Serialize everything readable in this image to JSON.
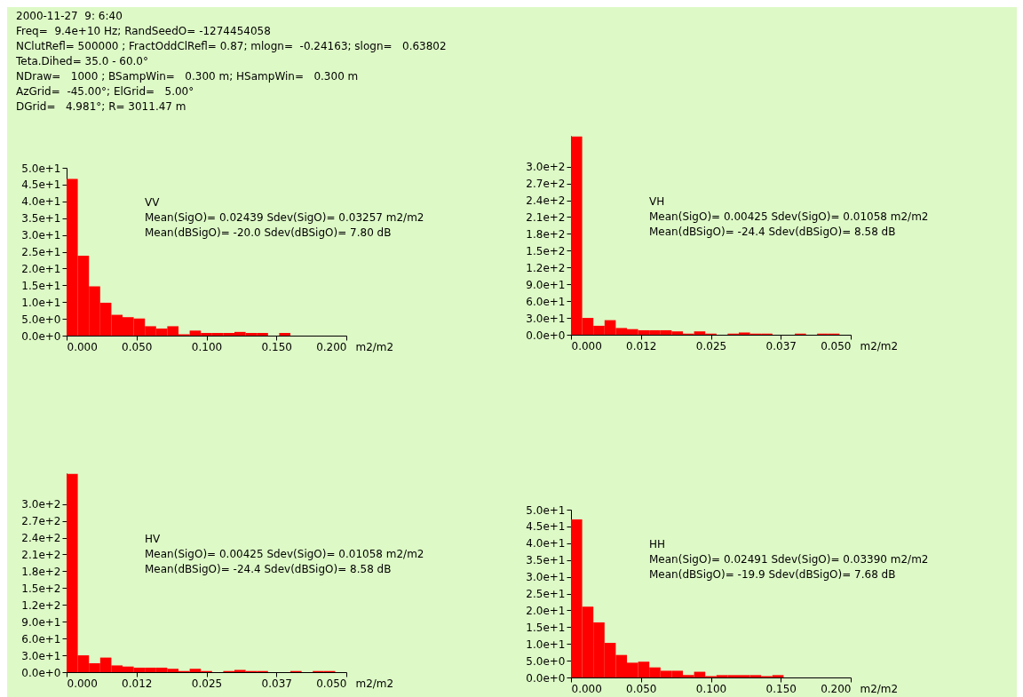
{
  "chart_data": [
    {
      "type": "other",
      "annotations": [
        "2000-11-27  9: 6:40",
        "Freq=  9.4e+10 Hz; RandSeedO= -1274454058",
        "NClutRefl= 500000 ; FractOddClRefl= 0.87; mlogn=  -0.24163; slogn=   0.63802",
        "Teta.Dihed= 35.0 - 60.0°",
        "NDraw=   1000 ; BSampWin=   0.300 m; HSampWin=   0.300 m",
        "AzGrid=  -45.00°; ElGrid=   5.00°",
        "DGrid=   4.981°; R= 3011.47 m"
      ]
    },
    {
      "type": "histogram",
      "title": "VV",
      "annotations": [
        "Mean(SigO)= 0.02439  Sdev(SigO)= 0.03257 m2/m2",
        "Mean(dBSigO)= -20.0  Sdev(dBSigO)=   7.80 dB"
      ],
      "xlabel": "m2/m2",
      "color": "#ff0000",
      "bins": [
        0,
        0.008,
        0.016,
        0.024,
        0.032,
        0.04,
        0.048,
        0.056,
        0.064,
        0.072,
        0.08,
        0.088,
        0.096,
        0.104,
        0.112,
        0.12,
        0.128,
        0.136,
        0.144,
        0.152,
        0.16,
        0.168,
        0.176,
        0.184,
        0.192,
        0.2
      ],
      "values": [
        46.7,
        23.8,
        14.7,
        9.8,
        6.2,
        5.5,
        5.1,
        2.8,
        2.1,
        2.8,
        0.4,
        1.5,
        0.8,
        0.8,
        0.8,
        1.1,
        0.8,
        0.8,
        0,
        0.8,
        0,
        0,
        0,
        0,
        0
      ],
      "xlim": [
        0,
        0.2
      ],
      "xticks": [
        {
          "value": 0,
          "label": "0.000"
        },
        {
          "value": 0.05,
          "label": "0.050"
        },
        {
          "value": 0.1,
          "label": "0.100"
        },
        {
          "value": 0.15,
          "label": "0.150"
        },
        {
          "value": 0.2,
          "label": "0.200"
        }
      ],
      "ylim": [
        0,
        50
      ],
      "yticks": [
        {
          "value": 0,
          "label": "0.0e+0"
        },
        {
          "value": 5,
          "label": "5.0e+0"
        },
        {
          "value": 10,
          "label": "1.0e+1"
        },
        {
          "value": 15,
          "label": "1.5e+1"
        },
        {
          "value": 20,
          "label": "2.0e+1"
        },
        {
          "value": 25,
          "label": "2.5e+1"
        },
        {
          "value": 30,
          "label": "3.0e+1"
        },
        {
          "value": 35,
          "label": "3.5e+1"
        },
        {
          "value": 40,
          "label": "4.0e+1"
        },
        {
          "value": 45,
          "label": "4.5e+1"
        },
        {
          "value": 50,
          "label": "5.0e+1"
        }
      ]
    },
    {
      "type": "histogram",
      "title": "VH",
      "annotations": [
        "Mean(SigO)= 0.00425  Sdev(SigO)= 0.01058 m2/m2",
        "Mean(dBSigO)= -24.4  Sdev(dBSigO)=   8.58 dB"
      ],
      "xlabel": "m2/m2",
      "color": "#ff0000",
      "bins": [
        0,
        0.002,
        0.004,
        0.006,
        0.008,
        0.01,
        0.012,
        0.014,
        0.016,
        0.018,
        0.02,
        0.022,
        0.024,
        0.026,
        0.028,
        0.03,
        0.032,
        0.034,
        0.036,
        0.038,
        0.04,
        0.042,
        0.044,
        0.046,
        0.048,
        0.05
      ],
      "values": [
        354,
        30,
        16,
        26,
        12,
        10,
        8,
        8,
        8,
        6,
        2,
        6,
        2,
        0,
        2,
        4,
        2,
        2,
        0,
        0,
        2,
        0,
        2,
        2,
        0
      ],
      "xlim": [
        0,
        0.05
      ],
      "xticks": [
        {
          "value": 0,
          "label": "0.000"
        },
        {
          "value": 0.0125,
          "label": "0.012"
        },
        {
          "value": 0.025,
          "label": "0.025"
        },
        {
          "value": 0.0375,
          "label": "0.037"
        },
        {
          "value": 0.05,
          "label": "0.050"
        }
      ],
      "ylim": [
        0,
        355
      ],
      "yticks": [
        {
          "value": 0,
          "label": "0.0e+0"
        },
        {
          "value": 30,
          "label": "3.0e+1"
        },
        {
          "value": 60,
          "label": "6.0e+1"
        },
        {
          "value": 90,
          "label": "9.0e+1"
        },
        {
          "value": 120,
          "label": "1.2e+2"
        },
        {
          "value": 150,
          "label": "1.5e+2"
        },
        {
          "value": 180,
          "label": "1.8e+2"
        },
        {
          "value": 210,
          "label": "2.1e+2"
        },
        {
          "value": 240,
          "label": "2.4e+2"
        },
        {
          "value": 270,
          "label": "2.7e+2"
        },
        {
          "value": 300,
          "label": "3.0e+2"
        }
      ]
    },
    {
      "type": "histogram",
      "title": "HV",
      "annotations": [
        "Mean(SigO)= 0.00425  Sdev(SigO)= 0.01058 m2/m2",
        "Mean(dBSigO)= -24.4  Sdev(dBSigO)=   8.58 dB"
      ],
      "xlabel": "m2/m2",
      "color": "#ff0000",
      "bins": [
        0,
        0.002,
        0.004,
        0.006,
        0.008,
        0.01,
        0.012,
        0.014,
        0.016,
        0.018,
        0.02,
        0.022,
        0.024,
        0.026,
        0.028,
        0.03,
        0.032,
        0.034,
        0.036,
        0.038,
        0.04,
        0.042,
        0.044,
        0.046,
        0.048,
        0.05
      ],
      "values": [
        354,
        30,
        16,
        26,
        12,
        10,
        8,
        8,
        8,
        6,
        2,
        6,
        2,
        0,
        2,
        4,
        2,
        2,
        0,
        0,
        2,
        0,
        2,
        2,
        0
      ],
      "xlim": [
        0,
        0.05
      ],
      "xticks": [
        {
          "value": 0,
          "label": "0.000"
        },
        {
          "value": 0.0125,
          "label": "0.012"
        },
        {
          "value": 0.025,
          "label": "0.025"
        },
        {
          "value": 0.0375,
          "label": "0.037"
        },
        {
          "value": 0.05,
          "label": "0.050"
        }
      ],
      "ylim": [
        0,
        355
      ],
      "yticks": [
        {
          "value": 0,
          "label": "0.0e+0"
        },
        {
          "value": 30,
          "label": "3.0e+1"
        },
        {
          "value": 60,
          "label": "6.0e+1"
        },
        {
          "value": 90,
          "label": "9.0e+1"
        },
        {
          "value": 120,
          "label": "1.2e+2"
        },
        {
          "value": 150,
          "label": "1.5e+2"
        },
        {
          "value": 180,
          "label": "1.8e+2"
        },
        {
          "value": 210,
          "label": "2.1e+2"
        },
        {
          "value": 240,
          "label": "2.4e+2"
        },
        {
          "value": 270,
          "label": "2.7e+2"
        },
        {
          "value": 300,
          "label": "3.0e+2"
        }
      ]
    },
    {
      "type": "histogram",
      "title": "HH",
      "annotations": [
        "Mean(SigO)= 0.02491  Sdev(SigO)= 0.03390 m2/m2",
        "Mean(dBSigO)= -19.9  Sdev(dBSigO)=   7.68 dB"
      ],
      "xlabel": "m2/m2",
      "color": "#ff0000",
      "bins": [
        0,
        0.008,
        0.016,
        0.024,
        0.032,
        0.04,
        0.048,
        0.056,
        0.064,
        0.072,
        0.08,
        0.088,
        0.096,
        0.104,
        0.112,
        0.12,
        0.128,
        0.136,
        0.144,
        0.152,
        0.16,
        0.168,
        0.176,
        0.184,
        0.192,
        0.2
      ],
      "values": [
        47.1,
        21.1,
        16.4,
        10.3,
        6.7,
        4.4,
        4.7,
        3.0,
        2.0,
        2.0,
        0.7,
        1.7,
        0.4,
        0.7,
        0.7,
        0.7,
        0.7,
        0.4,
        0.7,
        0,
        0,
        0,
        0,
        0,
        0
      ],
      "xlim": [
        0,
        0.2
      ],
      "xticks": [
        {
          "value": 0,
          "label": "0.000"
        },
        {
          "value": 0.05,
          "label": "0.050"
        },
        {
          "value": 0.1,
          "label": "0.100"
        },
        {
          "value": 0.15,
          "label": "0.150"
        },
        {
          "value": 0.2,
          "label": "0.200"
        }
      ],
      "ylim": [
        0,
        50
      ],
      "yticks": [
        {
          "value": 0,
          "label": "0.0e+0"
        },
        {
          "value": 5,
          "label": "5.0e+0"
        },
        {
          "value": 10,
          "label": "1.0e+1"
        },
        {
          "value": 15,
          "label": "1.5e+1"
        },
        {
          "value": 20,
          "label": "2.0e+1"
        },
        {
          "value": 25,
          "label": "2.5e+1"
        },
        {
          "value": 30,
          "label": "3.0e+1"
        },
        {
          "value": 35,
          "label": "3.5e+1"
        },
        {
          "value": 40,
          "label": "4.0e+1"
        },
        {
          "value": 45,
          "label": "4.5e+1"
        },
        {
          "value": 50,
          "label": "5.0e+1"
        }
      ]
    }
  ]
}
